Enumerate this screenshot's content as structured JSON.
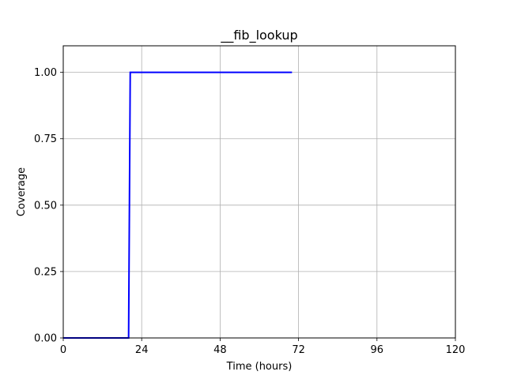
{
  "chart_data": {
    "type": "line",
    "title": "__fib_lookup",
    "xlabel": "Time (hours)",
    "ylabel": "Coverage",
    "xlim": [
      0,
      120
    ],
    "ylim": [
      0,
      1.1
    ],
    "xticks": [
      0,
      24,
      48,
      72,
      96,
      120
    ],
    "xtick_labels": [
      "0",
      "24",
      "48",
      "72",
      "96",
      "120"
    ],
    "yticks": [
      0,
      0.25,
      0.5,
      0.75,
      1.0
    ],
    "ytick_labels": [
      "0.00",
      "0.25",
      "0.50",
      "0.75",
      "1.00"
    ],
    "grid": true,
    "legend": "none",
    "series": [
      {
        "color": "#0000ff",
        "style": "step",
        "x": [
          0,
          20,
          20.5,
          70
        ],
        "y": [
          0,
          0,
          1,
          1
        ]
      }
    ]
  }
}
